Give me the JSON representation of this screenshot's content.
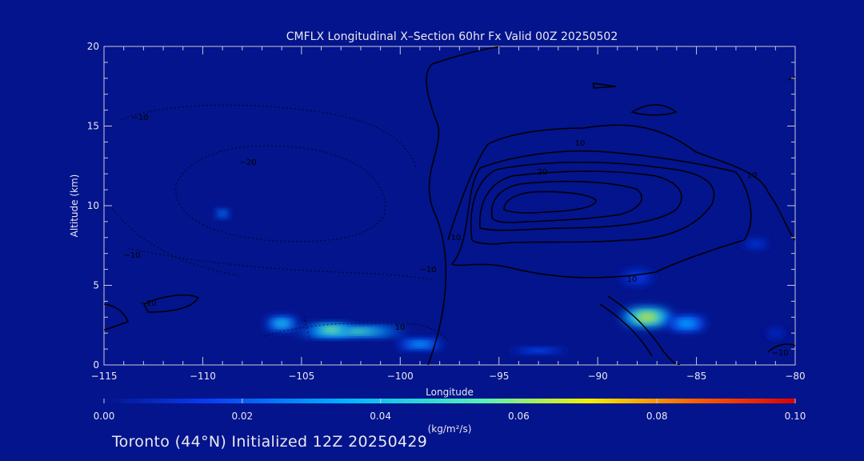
{
  "chart_data": {
    "type": "heatmap",
    "title": "CMFLX Longitudinal X–Section 60hr  Fx Valid 00Z 20250502",
    "xlabel": "Longitude",
    "ylabel": "Altitude (km)",
    "xlim": [
      -115,
      -80
    ],
    "ylim": [
      0,
      20
    ],
    "x_ticks": [
      "−115",
      "−110",
      "−105",
      "−100",
      "−95",
      "−90",
      "−85",
      "−80"
    ],
    "x_tick_values": [
      -115,
      -110,
      -105,
      -100,
      -95,
      -90,
      -85,
      -80
    ],
    "y_ticks": [
      "0",
      "5",
      "10",
      "15",
      "20"
    ],
    "y_tick_values": [
      0,
      5,
      10,
      15,
      20
    ],
    "colorbar": {
      "min": 0.0,
      "max": 0.1,
      "unit": "(kg/m²/s)",
      "tick_labels": [
        "0.00",
        "0.02",
        "0.04",
        "0.06",
        "0.08",
        "0.10"
      ],
      "tick_values": [
        0.0,
        0.02,
        0.04,
        0.06,
        0.08,
        0.1
      ]
    },
    "contour_labels": [
      "−10",
      "−20",
      "−10",
      "−10",
      "10",
      "10",
      "20",
      "10",
      "−10",
      "10",
      "−10",
      "10"
    ],
    "flux_cells": [
      {
        "lon": -102.5,
        "alt": 2.1,
        "dlon": 5.5,
        "dalt": 0.6,
        "peak": 0.065
      },
      {
        "lon": -106.0,
        "alt": 2.6,
        "dlon": 1.6,
        "dalt": 0.8,
        "peak": 0.05
      },
      {
        "lon": -103.5,
        "alt": 2.2,
        "dlon": 2.2,
        "dalt": 0.7,
        "peak": 0.07
      },
      {
        "lon": -99.0,
        "alt": 1.3,
        "dlon": 2.4,
        "dalt": 0.6,
        "peak": 0.04
      },
      {
        "lon": -93.0,
        "alt": 0.9,
        "dlon": 3.0,
        "dalt": 0.35,
        "peak": 0.025
      },
      {
        "lon": -87.5,
        "alt": 3.0,
        "dlon": 2.6,
        "dalt": 1.2,
        "peak": 0.075
      },
      {
        "lon": -85.5,
        "alt": 2.6,
        "dlon": 2.0,
        "dalt": 0.9,
        "peak": 0.04
      },
      {
        "lon": -109.0,
        "alt": 9.5,
        "dlon": 0.6,
        "dalt": 0.5,
        "peak": 0.045
      },
      {
        "lon": -88.0,
        "alt": 5.5,
        "dlon": 1.8,
        "dalt": 1.0,
        "peak": 0.015
      },
      {
        "lon": -82.0,
        "alt": 7.6,
        "dlon": 1.4,
        "dalt": 0.6,
        "peak": 0.015
      },
      {
        "lon": -81.0,
        "alt": 2.0,
        "dlon": 1.0,
        "dalt": 0.6,
        "peak": 0.012
      }
    ]
  },
  "footer": "Toronto (44°N) Initialized 12Z 20250429"
}
